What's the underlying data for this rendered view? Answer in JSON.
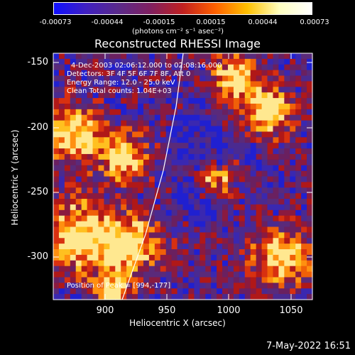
{
  "colorbar": {
    "ticks": [
      "-0.00073",
      "-0.00044",
      "-0.00015",
      "0.00015",
      "0.00044",
      "0.00073"
    ],
    "units": "(photons cm⁻² s⁻¹ asec⁻²)"
  },
  "plot": {
    "title": "Reconstructed RHESSI Image",
    "xlabel": "Heliocentric X (arcsec)",
    "ylabel": "Heliocentric Y (arcsec)",
    "xticks": [
      "900",
      "950",
      "1000",
      "1050"
    ],
    "yticks": [
      "-150",
      "-200",
      "-250",
      "-300"
    ],
    "annotations": {
      "time": "4-Dec-2003 02:06:12.000 to 02:08:16.000",
      "detectors": "Detectors: 3F 4F 5F 6F 7F 8F, Att 0",
      "energy": "Energy Range: 12.0 - 25.0 keV",
      "clean": "Clean     Total counts: 1.04E+03",
      "peak": "Position of Peak = [994,-177]"
    }
  },
  "footer": {
    "timestamp": "7-May-2022 16:51"
  },
  "colors": {
    "background": "#000000",
    "foreground": "#ffffff"
  }
}
